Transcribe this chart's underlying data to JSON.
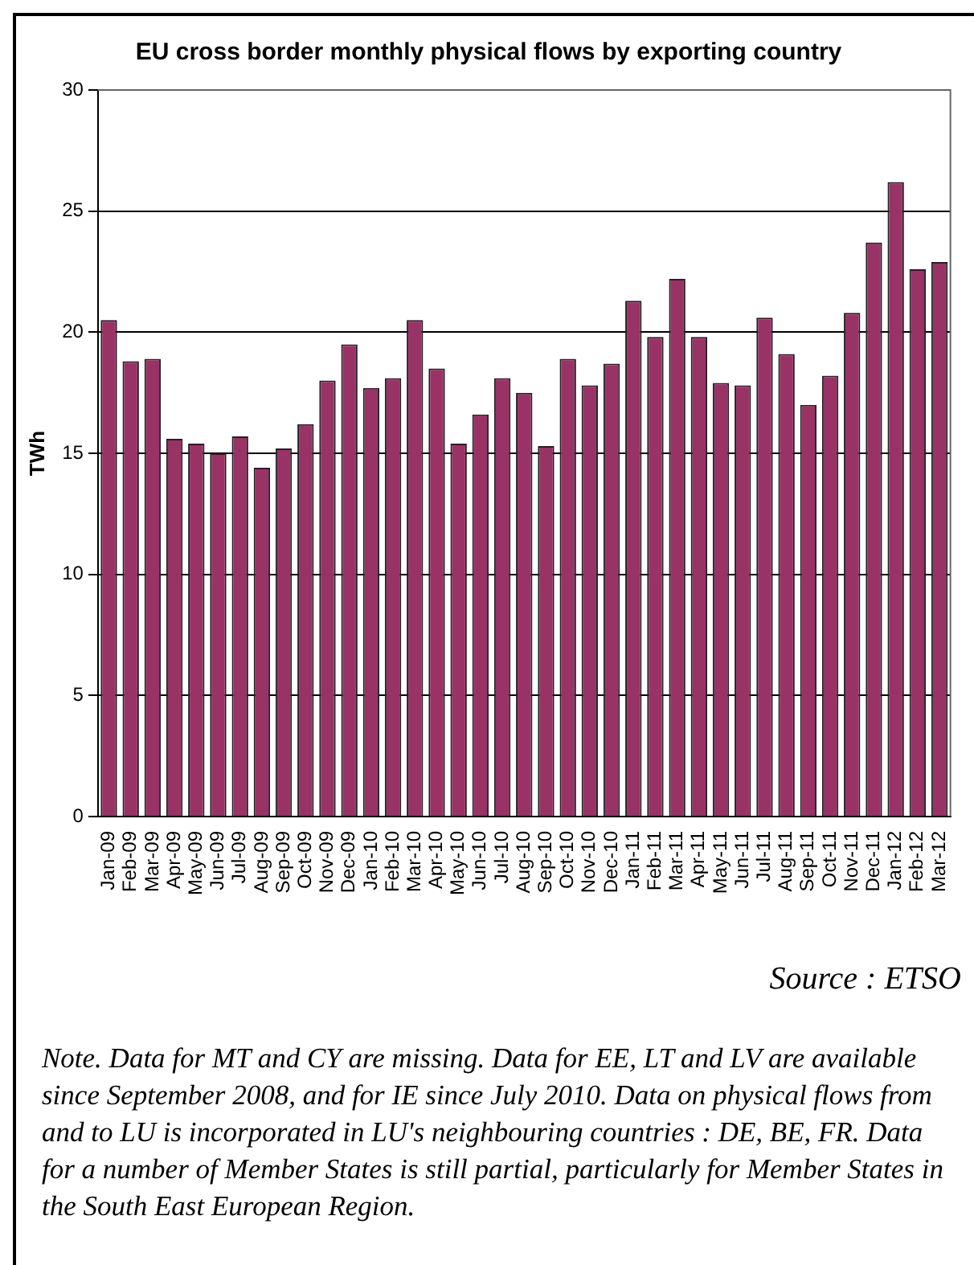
{
  "chart_data": {
    "type": "bar",
    "title": "EU cross border monthly physical flows by exporting country",
    "ylabel": "TWh",
    "categories": [
      "Jan-09",
      "Feb-09",
      "Mar-09",
      "Apr-09",
      "May-09",
      "Jun-09",
      "Jul-09",
      "Aug-09",
      "Sep-09",
      "Oct-09",
      "Nov-09",
      "Dec-09",
      "Jan-10",
      "Feb-10",
      "Mar-10",
      "Apr-10",
      "May-10",
      "Jun-10",
      "Jul-10",
      "Aug-10",
      "Sep-10",
      "Oct-10",
      "Nov-10",
      "Dec-10",
      "Jan-11",
      "Feb-11",
      "Mar-11",
      "Apr-11",
      "May-11",
      "Jun-11",
      "Jul-11",
      "Aug-11",
      "Sep-11",
      "Oct-11",
      "Nov-11",
      "Dec-11",
      "Jan-12",
      "Feb-12",
      "Mar-12"
    ],
    "values": [
      20.5,
      18.8,
      18.9,
      15.6,
      15.4,
      15.0,
      15.7,
      14.4,
      15.2,
      16.2,
      18.0,
      19.5,
      17.7,
      18.1,
      20.5,
      18.5,
      15.4,
      16.6,
      18.1,
      17.5,
      15.3,
      18.9,
      17.8,
      18.7,
      21.3,
      19.8,
      22.2,
      19.8,
      17.9,
      17.8,
      20.6,
      19.1,
      17.0,
      18.2,
      20.8,
      23.7,
      26.2,
      22.6,
      22.9
    ],
    "color": "#993366",
    "ylim": [
      0,
      30
    ],
    "yticks": [
      0,
      5,
      10,
      15,
      20,
      25,
      30
    ],
    "grid": "y",
    "legend": false,
    "annotations": [
      "Source : ETSO",
      "Note. Data for MT and CY are missing. Data for EE, LT and LV are available since September 2008, and for IE since July 2010. Data on physical flows from and to LU is incorporated in LU's neighbouring countries : DE, BE, FR. Data for a number of Member States is still partial, particularly for Member States in the South East European Region."
    ]
  }
}
